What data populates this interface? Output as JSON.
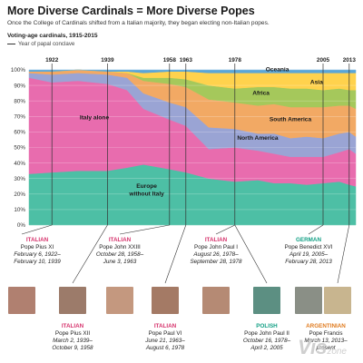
{
  "header": {
    "title": "More Diverse Cardinals = More Diverse Popes",
    "subtitle": "Once the College of Cardinals shifted from a Italian majority, they began electing non-Italian popes.",
    "chart_heading": "Voting-age cardinals, 1915-2015",
    "legend_conclave": "Year of papal conclave"
  },
  "chart_data": {
    "type": "area",
    "stacked": "percent",
    "x": [
      1915,
      1922,
      1930,
      1939,
      1945,
      1950,
      1958,
      1963,
      1970,
      1978,
      1985,
      1990,
      1995,
      2000,
      2005,
      2010,
      2013,
      2015
    ],
    "series": [
      {
        "name": "Europe without Italy",
        "color": "#4dbfa5",
        "values": [
          33,
          34,
          35,
          35,
          37,
          39,
          36,
          34,
          30,
          28,
          29,
          27,
          27,
          26,
          27,
          28,
          26,
          25
        ]
      },
      {
        "name": "Italy alone",
        "color": "#e86cae",
        "values": [
          62,
          58,
          58,
          56,
          50,
          36,
          32,
          30,
          19,
          22,
          19,
          19,
          17,
          18,
          17,
          19,
          23,
          21
        ]
      },
      {
        "name": "North America",
        "color": "#9aa4d4",
        "values": [
          3,
          5,
          5,
          6,
          8,
          10,
          11,
          12,
          14,
          12,
          11,
          13,
          12,
          13,
          12,
          12,
          11,
          11
        ]
      },
      {
        "name": "South America",
        "color": "#f2a964",
        "values": [
          1,
          2,
          2,
          2,
          3,
          8,
          12,
          13,
          18,
          17,
          18,
          19,
          20,
          19,
          20,
          18,
          17,
          18
        ]
      },
      {
        "name": "Africa",
        "color": "#a5c85b",
        "values": [
          0,
          0,
          0,
          0,
          0,
          2,
          4,
          5,
          9,
          9,
          12,
          11,
          12,
          12,
          11,
          11,
          10,
          12
        ]
      },
      {
        "name": "Asia",
        "color": "#ffd24d",
        "values": [
          0,
          0,
          0,
          0,
          1,
          3,
          4,
          5,
          8,
          10,
          9,
          9,
          10,
          10,
          11,
          10,
          11,
          11
        ]
      },
      {
        "name": "Oceania",
        "color": "#5aa6d8",
        "values": [
          1,
          1,
          0,
          1,
          1,
          2,
          1,
          1,
          2,
          2,
          2,
          2,
          2,
          2,
          2,
          2,
          2,
          2
        ]
      }
    ],
    "y_ticks": [
      "0%",
      "10%",
      "20%",
      "30%",
      "40%",
      "50%",
      "60%",
      "70%",
      "80%",
      "90%",
      "100%"
    ],
    "xlim": [
      1915,
      2015
    ],
    "ylim": [
      0,
      100
    ],
    "conclaves": [
      1922,
      1939,
      1958,
      1963,
      1978,
      1978,
      2005,
      2013
    ],
    "conclave_labels": [
      "1922",
      "1939",
      "1958",
      "1963",
      "1978",
      "2005",
      "2013"
    ],
    "region_labels": {
      "europe_line1": "Europe",
      "europe_line2": "without Italy",
      "italy": "Italy alone",
      "north_america": "North America",
      "south_america": "South America",
      "africa": "Africa",
      "asia": "Asia",
      "oceania": "Oceania"
    }
  },
  "popes": [
    {
      "nationality": "ITALIAN",
      "name": "Pope Pius XI",
      "dates1": "February 6, 1922–",
      "dates2": "February 10, 1939",
      "nat_color": "#d6336c",
      "portrait": "#b08070"
    },
    {
      "nationality": "ITALIAN",
      "name": "Pope Pius XII",
      "dates1": "March 2, 1939–",
      "dates2": "October 9, 1958",
      "nat_color": "#d6336c",
      "portrait": "#9c7b6a"
    },
    {
      "nationality": "ITALIAN",
      "name": "Pope John XXIII",
      "dates1": "October 28, 1958–",
      "dates2": "June 3, 1963",
      "nat_color": "#d6336c",
      "portrait": "#c4987f"
    },
    {
      "nationality": "ITALIAN",
      "name": "Pope Paul VI",
      "dates1": "June 21, 1963–",
      "dates2": "August 6, 1978",
      "nat_color": "#d6336c",
      "portrait": "#a47a65"
    },
    {
      "nationality": "ITALIAN",
      "name": "Pope John Paul I",
      "dates1": "August 26, 1978–",
      "dates2": "September 28, 1978",
      "nat_color": "#d6336c",
      "portrait": "#b58a74"
    },
    {
      "nationality": "POLISH",
      "name": "Pope John Paul II",
      "dates1": "October 16, 1978–",
      "dates2": "April 2, 2005",
      "nat_color": "#13a085",
      "portrait": "#5c8f82"
    },
    {
      "nationality": "GERMAN",
      "name": "Pope Benedict XVI",
      "dates1": "April 19, 2005–",
      "dates2": "February 28, 2013",
      "nat_color": "#13a085",
      "portrait": "#8a8f86"
    },
    {
      "nationality": "ARGENTINIAN",
      "name": "Pope Francis",
      "dates1": "March 13, 2013–",
      "dates2": "present",
      "nat_color": "#e07b1f",
      "portrait": "#c8b58f"
    }
  ],
  "watermark": {
    "main": "Vis",
    "small": "zone"
  }
}
